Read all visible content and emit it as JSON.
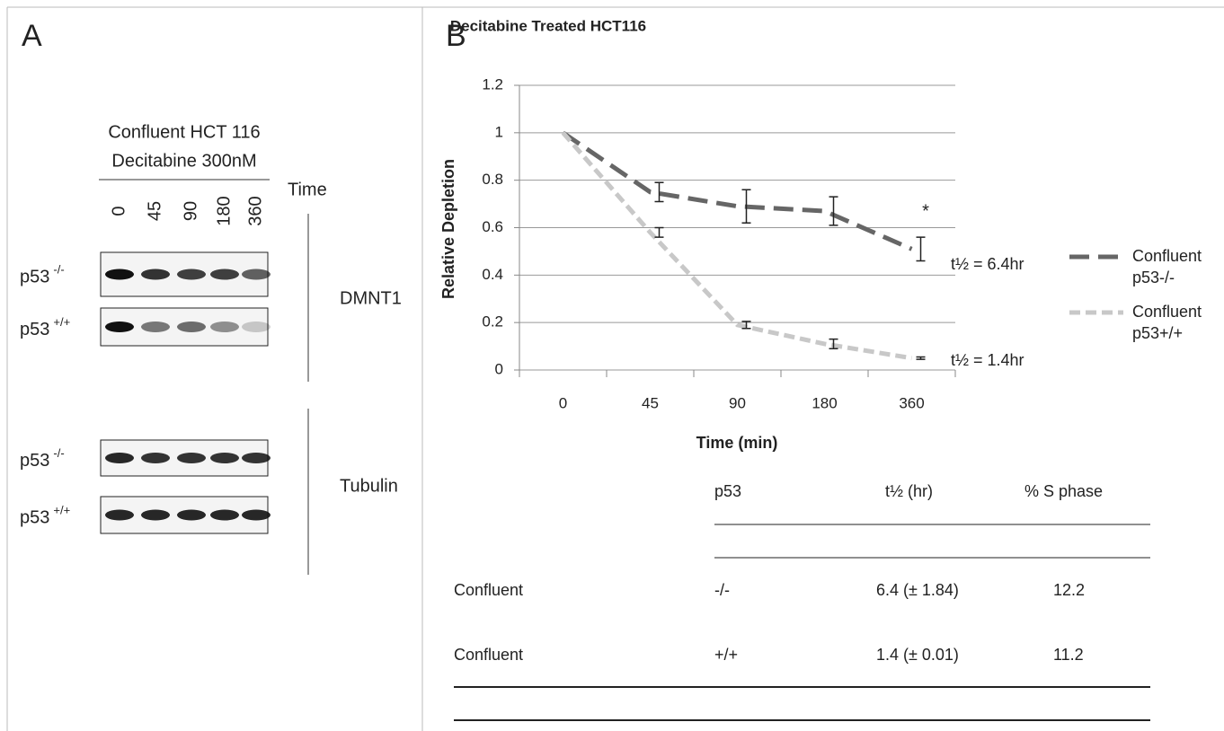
{
  "panel_a": {
    "label": "A",
    "title_lines": [
      "Confluent HCT 116",
      "Decitabine 300nM"
    ],
    "time_label": "Time",
    "lanes": [
      "0",
      "45",
      "90",
      "180",
      "360"
    ],
    "groups": [
      {
        "name": "DMNT1",
        "rows": [
          {
            "gene": "p53",
            "genotype": "-/-"
          },
          {
            "gene": "p53",
            "genotype": "+/+"
          }
        ]
      },
      {
        "name": "Tubulin",
        "rows": [
          {
            "gene": "p53",
            "genotype": "-/-"
          },
          {
            "gene": "p53",
            "genotype": "+/+"
          }
        ]
      }
    ]
  },
  "panel_b_label": "B",
  "chart_data": {
    "type": "line",
    "title": "Decitabine Treated HCT116",
    "x_label": "Time (min)",
    "y_label": "Relative Depletion",
    "categories": [
      "0",
      "45",
      "90",
      "180",
      "360"
    ],
    "series": [
      {
        "name": "Confluent p53-/-",
        "color": "#666666",
        "dash": "22 10",
        "values": [
          1,
          0.75,
          0.69,
          0.67,
          0.51
        ],
        "errors": [
          0,
          0.04,
          0.07,
          0.06,
          0.05
        ]
      },
      {
        "name": "Confluent p53+/+",
        "color": "#c8c8c8",
        "dash": "12 6",
        "values": [
          1,
          0.58,
          0.19,
          0.11,
          0.05
        ],
        "errors": [
          0,
          0.02,
          0.015,
          0.02,
          0.005
        ]
      }
    ],
    "annotations": [
      "*",
      "t½ = 6.4hr",
      "t½ = 1.4hr"
    ],
    "ylim": [
      0,
      1.2
    ],
    "yticks": [
      0,
      0.2,
      0.4,
      0.6,
      0.8,
      1,
      1.2
    ],
    "grid": true
  },
  "table": {
    "header": [
      "p53",
      "t½ (hr)",
      "%  S phase"
    ],
    "rows": [
      [
        "Confluent",
        "-/-",
        "6.4 (± 1.84)",
        "12.2"
      ],
      [
        "Confluent",
        "+/+",
        "1.4 (± 0.01)",
        "11.2"
      ]
    ]
  }
}
